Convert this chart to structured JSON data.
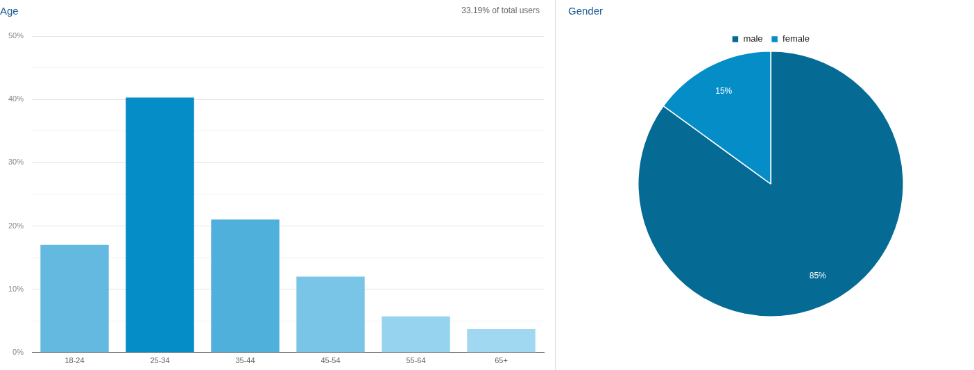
{
  "chart_data": [
    {
      "type": "bar",
      "title": "Age",
      "annotations": [
        "33.19% of total users"
      ],
      "categories": [
        "18-24",
        "25-34",
        "35-44",
        "45-54",
        "55-64",
        "65+"
      ],
      "values": [
        17,
        40.3,
        21,
        12,
        5.7,
        3.7
      ],
      "colors": [
        "#63b9e0",
        "#058dc7",
        "#50b0dc",
        "#78c5e8",
        "#96d3ef",
        "#9fd8f0"
      ],
      "ylim": [
        0,
        50
      ],
      "yticks": [
        {
          "value": 0,
          "label": "0%"
        },
        {
          "value": 5,
          "label": null
        },
        {
          "value": 10,
          "label": "10%"
        },
        {
          "value": 15,
          "label": null
        },
        {
          "value": 20,
          "label": "20%"
        },
        {
          "value": 25,
          "label": null
        },
        {
          "value": 30,
          "label": "30%"
        },
        {
          "value": 35,
          "label": null
        },
        {
          "value": 40,
          "label": "40%"
        },
        {
          "value": 45,
          "label": null
        },
        {
          "value": 50,
          "label": "50%"
        }
      ],
      "grid": "y",
      "legend": false
    },
    {
      "type": "pie",
      "title": "Gender",
      "categories": [
        "male",
        "female"
      ],
      "values": [
        85,
        15
      ],
      "colors": [
        "#056a94",
        "#058dc7"
      ],
      "value_labels": [
        "85%",
        "15%"
      ],
      "legend": "top"
    }
  ]
}
